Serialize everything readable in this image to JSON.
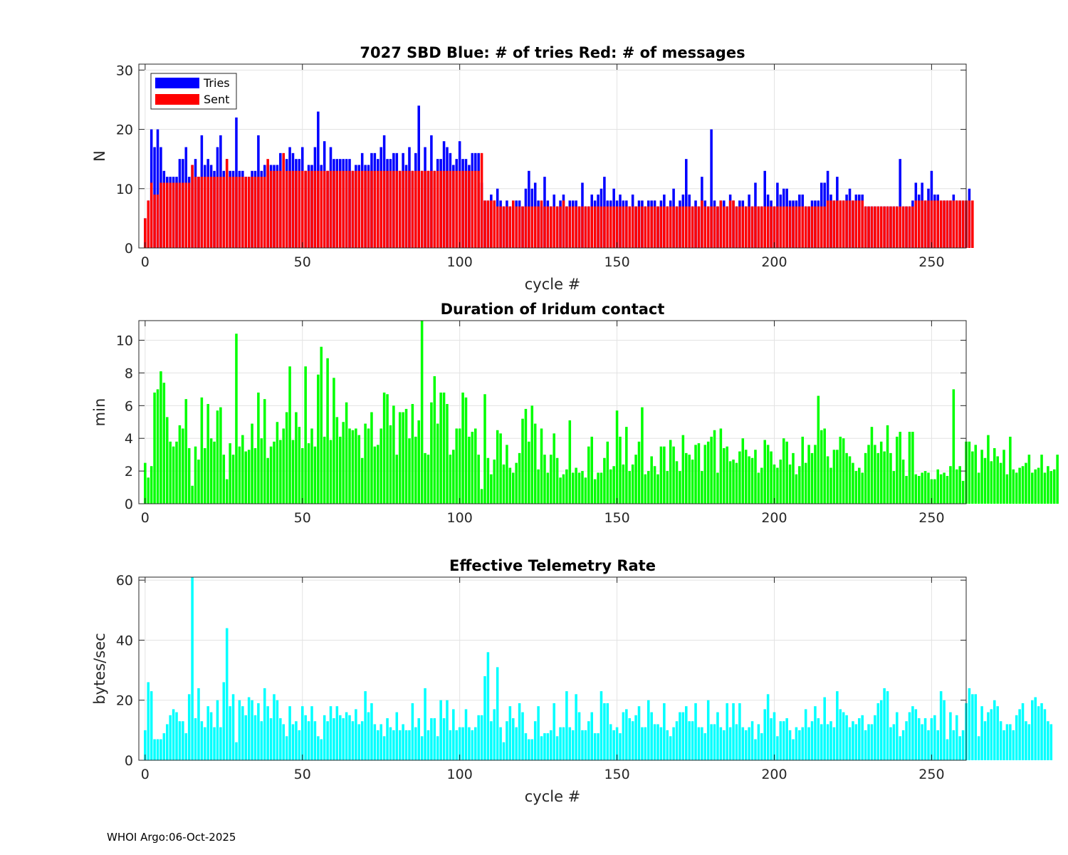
{
  "footer": "WHOI Argo:06-Oct-2025",
  "chart_data": [
    {
      "type": "bar",
      "title": "7027 SBD  Blue: # of tries   Red: # of messages",
      "xlabel": "cycle #",
      "ylabel": "N",
      "xlim": [
        -2,
        261
      ],
      "ylim": [
        0,
        31
      ],
      "xticks": [
        0,
        50,
        100,
        150,
        200,
        250
      ],
      "yticks": [
        0,
        10,
        20,
        30
      ],
      "grid": true,
      "legend": {
        "position": "top-left",
        "entries": [
          "Tries",
          "Sent"
        ]
      },
      "x_start": 0,
      "series": [
        {
          "name": "Tries",
          "color": "#0000ff",
          "values": [
            5,
            8,
            20,
            17,
            20,
            17,
            13,
            12,
            12,
            12,
            12,
            15,
            15,
            17,
            12,
            14,
            15,
            12,
            19,
            14,
            15,
            14,
            13,
            17,
            19,
            13,
            15,
            13,
            13,
            22,
            13,
            13,
            12,
            12,
            13,
            13,
            19,
            13,
            14,
            14,
            14,
            14,
            14,
            16,
            15,
            15,
            17,
            16,
            15,
            15,
            17,
            13,
            14,
            14,
            17,
            23,
            14,
            18,
            13,
            17,
            15,
            15,
            15,
            15,
            15,
            15,
            13,
            14,
            14,
            16,
            14,
            14,
            16,
            16,
            15,
            17,
            19,
            15,
            15,
            16,
            16,
            13,
            16,
            14,
            17,
            13,
            16,
            24,
            13,
            17,
            13,
            19,
            13,
            15,
            15,
            18,
            17,
            16,
            14,
            15,
            18,
            15,
            15,
            14,
            16,
            16,
            16,
            11,
            8,
            8,
            9,
            8,
            10,
            8,
            7,
            8,
            7,
            7,
            8,
            8,
            7,
            10,
            13,
            10,
            11,
            8,
            7,
            12,
            8,
            7,
            9,
            7,
            8,
            9,
            7,
            8,
            8,
            8,
            7,
            11,
            7,
            7,
            9,
            8,
            9,
            10,
            12,
            8,
            8,
            10,
            8,
            9,
            8,
            8,
            7,
            9,
            7,
            8,
            8,
            7,
            8,
            8,
            8,
            7,
            8,
            9,
            7,
            8,
            10,
            7,
            8,
            9,
            15,
            9,
            7,
            8,
            7,
            12,
            8,
            7,
            20,
            8,
            7,
            8,
            8,
            7,
            9,
            8,
            7,
            8,
            8,
            7,
            9,
            7,
            11,
            7,
            7,
            13,
            9,
            8,
            7,
            11,
            9,
            10,
            10,
            8,
            8,
            8,
            9,
            9,
            7,
            7,
            8,
            8,
            8,
            11,
            11,
            13,
            9,
            8,
            12,
            8,
            8,
            9,
            10,
            8,
            9,
            9,
            9,
            7,
            7,
            7,
            7,
            7,
            7,
            7,
            7,
            7,
            7,
            7,
            15,
            7,
            7,
            7,
            8,
            11,
            9,
            11,
            8,
            10,
            13,
            9,
            9,
            8,
            8,
            8,
            8,
            9,
            8,
            8,
            8,
            8,
            10
          ]
        },
        {
          "name": "Sent",
          "color": "#ff0000",
          "values": [
            5,
            8,
            11,
            9,
            9,
            11,
            11,
            11,
            11,
            11,
            11,
            11,
            11,
            11,
            11,
            14,
            12,
            12,
            12,
            12,
            12,
            12,
            12,
            12,
            12,
            12,
            15,
            12,
            12,
            12,
            12,
            12,
            12,
            12,
            12,
            12,
            12,
            12,
            12,
            15,
            13,
            13,
            13,
            13,
            16,
            13,
            13,
            13,
            13,
            13,
            13,
            13,
            13,
            13,
            13,
            13,
            13,
            13,
            13,
            13,
            13,
            13,
            13,
            13,
            13,
            13,
            13,
            13,
            13,
            13,
            13,
            13,
            13,
            13,
            13,
            13,
            13,
            13,
            13,
            13,
            13,
            13,
            13,
            13,
            13,
            13,
            13,
            13,
            13,
            13,
            13,
            13,
            13,
            13,
            13,
            13,
            13,
            13,
            13,
            13,
            13,
            13,
            13,
            13,
            13,
            13,
            13,
            16,
            8,
            8,
            8,
            8,
            7,
            7,
            7,
            7,
            7,
            8,
            7,
            7,
            7,
            7,
            7,
            7,
            7,
            7,
            8,
            7,
            7,
            7,
            7,
            7,
            7,
            8,
            7,
            7,
            7,
            7,
            7,
            7,
            7,
            7,
            7,
            7,
            7,
            7,
            7,
            7,
            7,
            7,
            7,
            7,
            7,
            7,
            7,
            7,
            7,
            7,
            7,
            7,
            7,
            7,
            7,
            7,
            7,
            7,
            7,
            7,
            7,
            7,
            7,
            7,
            7,
            7,
            7,
            7,
            7,
            8,
            7,
            7,
            7,
            7,
            7,
            8,
            7,
            7,
            8,
            8,
            7,
            7,
            7,
            7,
            7,
            7,
            7,
            7,
            7,
            7,
            7,
            7,
            7,
            7,
            7,
            7,
            7,
            7,
            7,
            7,
            7,
            7,
            7,
            7,
            7,
            7,
            7,
            7,
            7,
            8,
            8,
            8,
            8,
            8,
            8,
            8,
            8,
            8,
            8,
            8,
            8,
            7,
            7,
            7,
            7,
            7,
            7,
            7,
            7,
            7,
            7,
            7,
            7,
            7,
            7,
            7,
            7,
            8,
            8,
            8,
            8,
            8,
            8,
            8,
            8,
            8,
            8,
            8,
            8,
            8,
            8,
            8,
            8,
            8,
            8,
            8
          ]
        }
      ]
    },
    {
      "type": "bar",
      "title": "Duration of Iridum contact",
      "xlabel": "",
      "ylabel": "min",
      "xlim": [
        -2,
        261
      ],
      "ylim": [
        0,
        11.2
      ],
      "xticks": [
        0,
        50,
        100,
        150,
        200,
        250
      ],
      "yticks": [
        0,
        2,
        4,
        6,
        8,
        10
      ],
      "grid": true,
      "x_start": 0,
      "series": [
        {
          "name": "Duration",
          "color": "#00ff00",
          "values": [
            2.5,
            1.6,
            2.3,
            6.8,
            7.0,
            8.1,
            7.4,
            5.3,
            3.8,
            3.5,
            3.8,
            4.8,
            4.6,
            6.4,
            3.4,
            1.1,
            3.5,
            2.7,
            6.5,
            3.4,
            6.1,
            4.0,
            3.8,
            5.7,
            5.9,
            3.0,
            1.5,
            3.7,
            3.0,
            10.4,
            3.5,
            4.2,
            3.2,
            3.3,
            4.9,
            3.4,
            6.8,
            4.0,
            6.4,
            2.8,
            3.5,
            3.8,
            5.0,
            3.9,
            4.6,
            5.6,
            8.4,
            3.9,
            5.6,
            4.7,
            3.4,
            8.4,
            3.7,
            4.6,
            3.5,
            7.9,
            9.6,
            4.1,
            8.9,
            3.9,
            7.7,
            5.3,
            4.1,
            5.0,
            6.2,
            4.6,
            4.5,
            4.6,
            4.2,
            2.8,
            4.9,
            4.6,
            5.6,
            3.5,
            3.6,
            4.6,
            6.8,
            6.7,
            4.8,
            6.0,
            3.0,
            5.6,
            5.6,
            5.8,
            4.0,
            6.1,
            4.1,
            5.1,
            11.2,
            3.1,
            3.0,
            6.2,
            7.8,
            4.9,
            6.8,
            6.8,
            6.1,
            3.0,
            3.3,
            4.6,
            4.6,
            6.8,
            6.5,
            4.1,
            4.4,
            4.6,
            3.0,
            0.9,
            6.7,
            2.8,
            1.8,
            2.7,
            4.5,
            4.3,
            2.4,
            3.6,
            2.2,
            1.9,
            2.5,
            3.1,
            5.2,
            5.8,
            3.8,
            6.0,
            4.9,
            2.1,
            4.6,
            3.0,
            1.9,
            3.0,
            4.3,
            2.8,
            1.6,
            1.8,
            2.1,
            5.1,
            1.9,
            2.2,
            1.9,
            2.0,
            1.6,
            3.5,
            4.1,
            1.5,
            1.9,
            1.9,
            2.8,
            3.8,
            2.1,
            2.3,
            5.7,
            4.1,
            2.4,
            4.7,
            2.0,
            2.4,
            3.0,
            3.8,
            5.9,
            1.8,
            2.0,
            2.9,
            2.3,
            1.8,
            3.5,
            3.5,
            2.0,
            3.9,
            3.5,
            2.6,
            2.0,
            4.2,
            3.1,
            3.0,
            2.7,
            3.6,
            3.7,
            2.0,
            3.6,
            3.8,
            4.1,
            4.5,
            1.9,
            4.6,
            3.4,
            3.5,
            2.6,
            2.7,
            2.5,
            3.2,
            4.0,
            3.3,
            2.9,
            2.8,
            3.3,
            1.9,
            2.2,
            3.9,
            3.6,
            3.2,
            2.4,
            2.2,
            2.7,
            4.0,
            3.8,
            2.4,
            3.1,
            1.8,
            2.3,
            4.1,
            2.5,
            3.6,
            3.1,
            3.6,
            6.6,
            4.5,
            4.6,
            2.9,
            2.2,
            3.3,
            3.3,
            4.1,
            4.0,
            3.1,
            2.9,
            2.5,
            2.0,
            2.2,
            1.9,
            3.1,
            3.6,
            4.7,
            3.6,
            3.1,
            3.8,
            3.2,
            4.8,
            3.1,
            2.0,
            4.1,
            4.4,
            2.7,
            1.7,
            4.4,
            4.4,
            1.8,
            1.7,
            1.9,
            2.0,
            1.9,
            1.5,
            1.5,
            2.1,
            1.8,
            1.9,
            1.7,
            2.3,
            7.0,
            2.1,
            2.3,
            1.4,
            3.8,
            3.8,
            3.2,
            3.6,
            1.9,
            3.3,
            2.8,
            4.2,
            2.6,
            3.4,
            2.9,
            2.5,
            3.3,
            1.8,
            4.1,
            2.1,
            1.9,
            2.2,
            2.3,
            2.5,
            3.0,
            1.9,
            2.1,
            2.2,
            3.0,
            1.9,
            2.3,
            2.0,
            2.1,
            3.0
          ]
        }
      ]
    },
    {
      "type": "bar",
      "title": "Effective Telemetry Rate",
      "xlabel": "cycle #",
      "ylabel": "bytes/sec",
      "xlim": [
        -2,
        261
      ],
      "ylim": [
        0,
        61
      ],
      "xticks": [
        0,
        50,
        100,
        150,
        200,
        250
      ],
      "yticks": [
        0,
        20,
        40,
        60
      ],
      "grid": true,
      "x_start": 0,
      "series": [
        {
          "name": "Rate",
          "color": "#00ffff",
          "values": [
            10,
            26,
            23,
            7,
            7,
            7,
            9,
            12,
            15,
            17,
            16,
            13,
            13,
            9,
            22,
            61,
            14,
            24,
            13,
            11,
            18,
            16,
            11,
            20,
            11,
            26,
            44,
            18,
            22,
            6,
            20,
            18,
            15,
            21,
            20,
            15,
            19,
            13,
            24,
            18,
            14,
            22,
            20,
            14,
            12,
            8,
            18,
            12,
            13,
            10,
            18,
            15,
            13,
            18,
            13,
            8,
            7,
            15,
            13,
            18,
            14,
            18,
            15,
            14,
            16,
            15,
            13,
            17,
            12,
            13,
            23,
            16,
            19,
            12,
            10,
            12,
            8,
            14,
            11,
            10,
            16,
            10,
            12,
            10,
            10,
            19,
            11,
            14,
            8,
            24,
            10,
            14,
            14,
            8,
            20,
            14,
            20,
            10,
            17,
            10,
            11,
            11,
            17,
            11,
            10,
            11,
            15,
            15,
            28,
            36,
            13,
            17,
            31,
            11,
            6,
            13,
            18,
            14,
            11,
            19,
            16,
            9,
            7,
            7,
            13,
            18,
            8,
            9,
            9,
            10,
            19,
            8,
            11,
            11,
            23,
            11,
            10,
            22,
            16,
            10,
            10,
            13,
            16,
            9,
            9,
            23,
            19,
            19,
            12,
            10,
            11,
            9,
            16,
            17,
            14,
            13,
            15,
            18,
            11,
            11,
            20,
            16,
            12,
            12,
            11,
            19,
            10,
            8,
            11,
            13,
            16,
            16,
            18,
            13,
            13,
            19,
            11,
            11,
            9,
            20,
            12,
            12,
            16,
            11,
            10,
            19,
            11,
            19,
            12,
            19,
            11,
            10,
            11,
            13,
            7,
            12,
            9,
            17,
            22,
            14,
            16,
            8,
            13,
            13,
            14,
            10,
            7,
            11,
            10,
            11,
            17,
            11,
            13,
            18,
            14,
            12,
            21,
            12,
            13,
            11,
            23,
            17,
            16,
            15,
            11,
            13,
            12,
            14,
            15,
            10,
            12,
            12,
            15,
            19,
            20,
            24,
            23,
            11,
            12,
            16,
            8,
            10,
            13,
            16,
            18,
            17,
            14,
            12,
            14,
            10,
            14,
            15,
            10,
            23,
            20,
            7,
            16,
            10,
            15,
            8,
            10,
            19,
            24,
            22,
            22,
            8,
            18,
            13,
            16,
            17,
            20,
            18,
            13,
            10,
            12,
            12,
            10,
            15,
            17,
            19,
            13,
            12,
            20,
            21,
            18,
            19,
            17,
            13,
            12
          ]
        }
      ]
    }
  ]
}
